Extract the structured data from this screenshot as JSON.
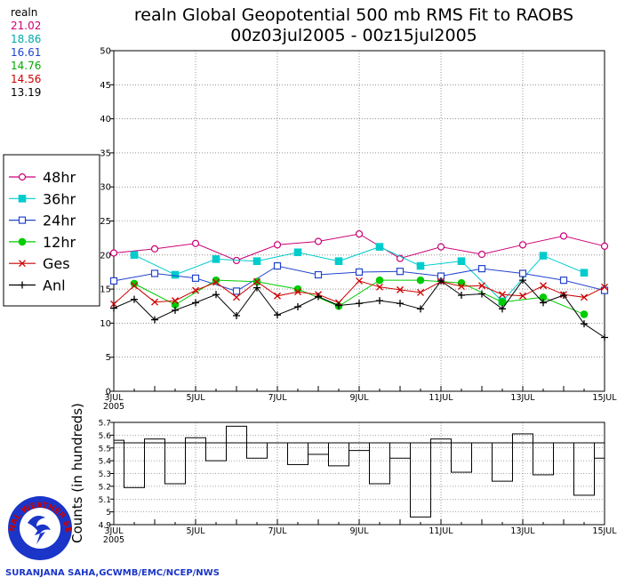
{
  "title_line1": "realn Global Geopotential 500 mb RMS Fit to RAOBS",
  "title_line2": "00z03jul2005 - 00z15jul2005",
  "stats": {
    "header": "realn",
    "values": [
      {
        "text": "21.02",
        "color": "#cc0077"
      },
      {
        "text": "18.86",
        "color": "#00aaaa"
      },
      {
        "text": "16.61",
        "color": "#2244cc"
      },
      {
        "text": "14.76",
        "color": "#00aa00"
      },
      {
        "text": "14.56",
        "color": "#cc0000"
      },
      {
        "text": "13.19",
        "color": "#000000"
      }
    ]
  },
  "legend": [
    {
      "label": "48hr",
      "color": "#cc0077",
      "marker": "open-circle"
    },
    {
      "label": "36hr",
      "color": "#00cccc",
      "marker": "filled-square"
    },
    {
      "label": "24hr",
      "color": "#2244cc",
      "marker": "open-square"
    },
    {
      "label": "12hr",
      "color": "#00cc00",
      "marker": "filled-circle"
    },
    {
      "label": "Ges",
      "color": "#cc0000",
      "marker": "x"
    },
    {
      "label": "Anl",
      "color": "#000000",
      "marker": "plus"
    }
  ],
  "credit": "SURANJANA SAHA,GCWMB/EMC/NCEP/NWS",
  "logo_text": "NATIONAL WEATHER SERVICE",
  "chart_data": [
    {
      "type": "line",
      "title": "realn Global Geopotential 500 mb RMS Fit to RAOBS",
      "xlabel": "",
      "ylabel": "",
      "x_ticks": [
        "3JUL",
        "5JUL",
        "7JUL",
        "9JUL",
        "11JUL",
        "13JUL",
        "15JUL"
      ],
      "x_year": "2005",
      "xlim": [
        0,
        24
      ],
      "ylim": [
        0,
        50
      ],
      "y_ticks": [
        0,
        5,
        10,
        15,
        20,
        25,
        30,
        35,
        40,
        45,
        50
      ],
      "series": [
        {
          "name": "48hr",
          "x": [
            0,
            2,
            4,
            6,
            8,
            10,
            12,
            14,
            16,
            18,
            20,
            22,
            24
          ],
          "values": [
            20.3,
            20.9,
            21.7,
            19.2,
            21.5,
            22.0,
            23.1,
            19.5,
            21.2,
            20.1,
            21.5,
            22.8,
            21.3
          ]
        },
        {
          "name": "36hr",
          "x": [
            1,
            3,
            5,
            7,
            9,
            11,
            13,
            15,
            17,
            19,
            21,
            23
          ],
          "values": [
            20.0,
            17.1,
            19.4,
            19.1,
            20.4,
            19.1,
            21.2,
            18.4,
            19.1,
            13.2,
            19.9,
            17.4
          ]
        },
        {
          "name": "24hr",
          "x": [
            0,
            2,
            4,
            6,
            8,
            10,
            12,
            14,
            16,
            18,
            20,
            22,
            24
          ],
          "values": [
            16.2,
            17.3,
            16.6,
            14.7,
            18.4,
            17.1,
            17.5,
            17.6,
            16.9,
            18.0,
            17.3,
            16.3,
            14.8
          ]
        },
        {
          "name": "12hr",
          "x": [
            1,
            3,
            5,
            7,
            9,
            11,
            13,
            15,
            17,
            19,
            21,
            23
          ],
          "values": [
            15.8,
            12.7,
            16.3,
            16.1,
            15.0,
            12.5,
            16.3,
            16.3,
            15.9,
            13.1,
            13.8,
            11.3
          ]
        },
        {
          "name": "Ges",
          "x": [
            0,
            1,
            2,
            3,
            4,
            5,
            6,
            7,
            8,
            9,
            10,
            11,
            12,
            13,
            14,
            15,
            16,
            17,
            18,
            19,
            20,
            21,
            22,
            23,
            24
          ],
          "values": [
            12.8,
            15.5,
            13.1,
            13.3,
            14.8,
            16.0,
            13.8,
            16.1,
            14.0,
            14.6,
            14.2,
            13.0,
            16.2,
            15.3,
            14.9,
            14.5,
            16.1,
            15.4,
            15.5,
            14.2,
            14.0,
            15.5,
            14.2,
            13.8,
            15.3
          ]
        },
        {
          "name": "Anl",
          "x": [
            0,
            1,
            2,
            3,
            4,
            5,
            6,
            7,
            8,
            9,
            10,
            11,
            12,
            13,
            14,
            15,
            16,
            17,
            18,
            19,
            20,
            21,
            22,
            23,
            24
          ],
          "values": [
            12.2,
            13.5,
            10.5,
            11.9,
            13.0,
            14.2,
            11.1,
            15.2,
            11.2,
            12.4,
            13.9,
            12.6,
            12.9,
            13.3,
            12.9,
            12.1,
            16.2,
            14.1,
            14.3,
            12.1,
            16.3,
            13.0,
            14.1,
            9.9,
            7.9
          ]
        }
      ]
    },
    {
      "type": "bar",
      "style": "step",
      "ylabel": "Counts (in hundreds)",
      "x_ticks": [
        "3JUL",
        "5JUL",
        "7JUL",
        "9JUL",
        "11JUL",
        "13JUL",
        "15JUL"
      ],
      "x_year": "2005",
      "xlim": [
        0,
        24
      ],
      "ylim": [
        4.9,
        5.7
      ],
      "y_ticks": [
        4.9,
        5,
        5.1,
        5.2,
        5.3,
        5.4,
        5.5,
        5.6,
        5.7
      ],
      "reference_value": 5.54,
      "values": [
        5.56,
        5.19,
        5.57,
        5.22,
        5.58,
        5.4,
        5.67,
        5.42,
        5.54,
        5.37,
        5.45,
        5.36,
        5.48,
        5.22,
        5.42,
        4.96,
        5.57,
        5.31,
        5.54,
        5.24,
        5.61,
        5.29,
        5.54,
        5.13,
        5.42
      ]
    }
  ]
}
